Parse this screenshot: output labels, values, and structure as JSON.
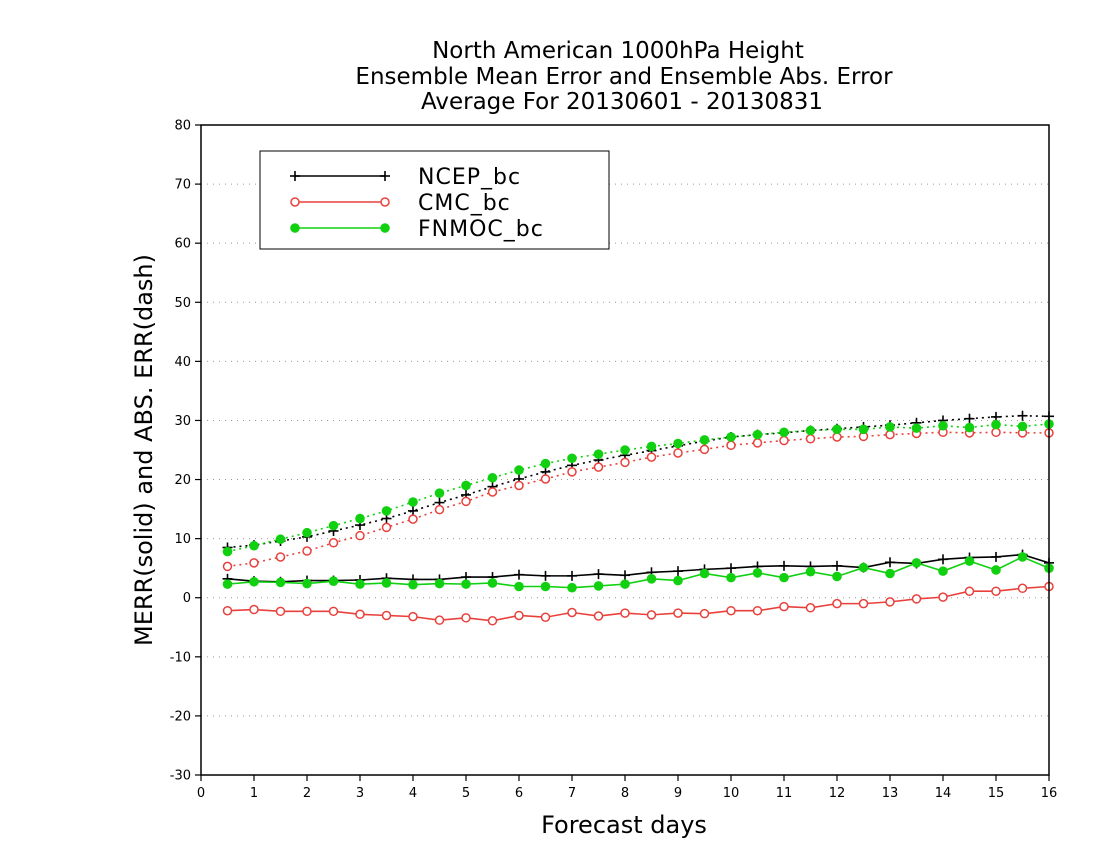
{
  "chart_data": {
    "type": "line",
    "title": [
      "North American 1000hPa Height",
      "Ensemble Mean Error and Ensemble Abs. Error",
      "Average For 20130601 - 20130831"
    ],
    "xlabel": "Forecast days",
    "ylabel": "MERR(solid) and ABS. ERR(dash)",
    "xlim": [
      0,
      16
    ],
    "ylim": [
      -30,
      80
    ],
    "xticks": [
      "0",
      "1",
      "2",
      "3",
      "4",
      "5",
      "6",
      "7",
      "8",
      "9",
      "10",
      "11",
      "12",
      "13",
      "14",
      "15",
      "16"
    ],
    "yticks": [
      "-30",
      "-20",
      "-10",
      "0",
      "10",
      "20",
      "30",
      "40",
      "50",
      "60",
      "70",
      "80"
    ],
    "grid": "horizontal dotted",
    "legend_position": "top-left",
    "x": [
      0.5,
      1,
      1.5,
      2,
      2.5,
      3,
      3.5,
      4,
      4.5,
      5,
      5.5,
      6,
      6.5,
      7,
      7.5,
      8,
      8.5,
      9,
      9.5,
      10,
      10.5,
      11,
      11.5,
      12,
      12.5,
      13,
      13.5,
      14,
      14.5,
      15,
      15.5,
      16
    ],
    "series": [
      {
        "name": "NCEP_bc",
        "color": "#000000",
        "marker": "plus",
        "merr": [
          3.2,
          2.8,
          2.7,
          2.9,
          2.9,
          3.0,
          3.3,
          3.1,
          3.1,
          3.5,
          3.5,
          3.9,
          3.7,
          3.7,
          4.0,
          3.8,
          4.3,
          4.5,
          4.8,
          5.0,
          5.3,
          5.4,
          5.3,
          5.4,
          5.1,
          6.0,
          5.8,
          6.5,
          6.8,
          6.9,
          7.3,
          5.9
        ],
        "abs_err": [
          8.5,
          8.9,
          9.6,
          10.3,
          11.3,
          12.3,
          13.4,
          14.7,
          16.1,
          17.4,
          18.8,
          20.1,
          21.3,
          22.4,
          23.3,
          24.1,
          24.9,
          25.7,
          26.5,
          27.2,
          27.6,
          27.9,
          28.3,
          28.6,
          28.9,
          29.2,
          29.6,
          30.0,
          30.3,
          30.6,
          30.8,
          30.7
        ]
      },
      {
        "name": "CMC_bc",
        "color": "#e8413c",
        "marker": "open-circle",
        "merr": [
          -2.2,
          -2.0,
          -2.3,
          -2.3,
          -2.3,
          -2.8,
          -3.0,
          -3.2,
          -3.8,
          -3.4,
          -3.9,
          -3.0,
          -3.3,
          -2.5,
          -3.1,
          -2.6,
          -2.9,
          -2.6,
          -2.7,
          -2.2,
          -2.2,
          -1.5,
          -1.7,
          -1.0,
          -1.0,
          -0.7,
          -0.2,
          0.1,
          1.1,
          1.1,
          1.6,
          1.9
        ],
        "abs_err": [
          5.3,
          5.9,
          6.9,
          7.9,
          9.3,
          10.5,
          11.9,
          13.3,
          14.9,
          16.3,
          17.9,
          19.0,
          20.1,
          21.3,
          22.1,
          22.9,
          23.8,
          24.5,
          25.1,
          25.8,
          26.2,
          26.6,
          26.9,
          27.2,
          27.3,
          27.6,
          27.8,
          28.0,
          27.9,
          28.0,
          27.9,
          27.9
        ]
      },
      {
        "name": "FNMOC_bc",
        "color": "#10d010",
        "marker": "filled-circle",
        "merr": [
          2.3,
          2.7,
          2.6,
          2.4,
          2.8,
          2.3,
          2.5,
          2.2,
          2.4,
          2.3,
          2.5,
          1.9,
          1.9,
          1.7,
          2.0,
          2.3,
          3.2,
          2.9,
          4.1,
          3.4,
          4.2,
          3.4,
          4.4,
          3.6,
          5.1,
          4.1,
          5.9,
          4.5,
          6.2,
          4.7,
          6.9,
          5.0
        ],
        "abs_err": [
          7.8,
          8.8,
          9.9,
          11.0,
          12.2,
          13.4,
          14.7,
          16.2,
          17.7,
          19.0,
          20.3,
          21.6,
          22.7,
          23.6,
          24.3,
          25.0,
          25.6,
          26.1,
          26.7,
          27.2,
          27.6,
          28.0,
          28.3,
          28.5,
          28.5,
          28.9,
          28.7,
          29.1,
          28.8,
          29.3,
          29.0,
          29.4
        ]
      }
    ]
  }
}
